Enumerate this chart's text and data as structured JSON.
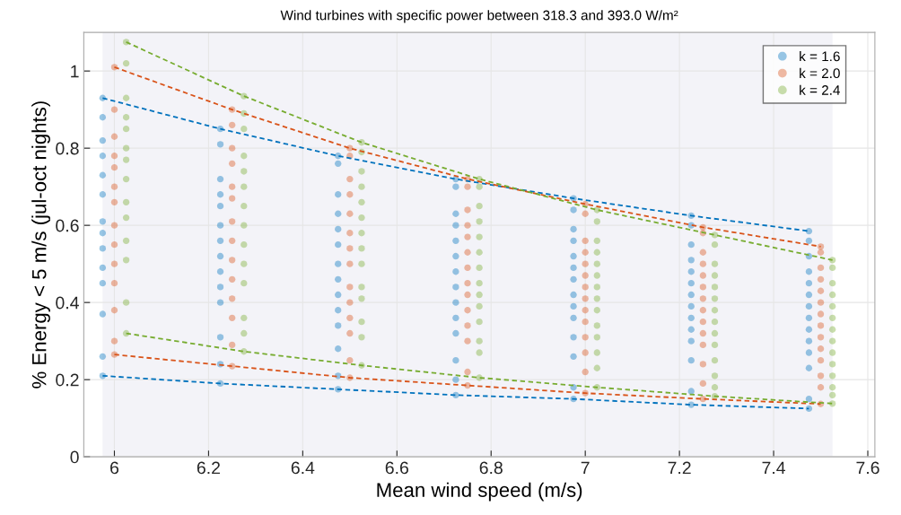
{
  "chart_data": {
    "type": "scatter",
    "title": "Wind turbines with specific power between 318.3 and 393.0 W/m²",
    "xlabel": "Mean wind speed (m/s)",
    "ylabel": "% Energy < 5 m/s (jul-oct nights)",
    "xlim": [
      5.935,
      7.615
    ],
    "ylim": [
      0,
      1.1
    ],
    "xticks": [
      6,
      6.2,
      6.4,
      6.6,
      6.8,
      7,
      7.2,
      7.4,
      7.6
    ],
    "yticks": [
      0,
      0.2,
      0.4,
      0.6,
      0.8,
      1
    ],
    "grid": true,
    "legend": "top right",
    "marker": "circle",
    "bands": [
      {
        "axis": "x",
        "from": 5.975,
        "to": 7.525,
        "color": "#f3f3f8"
      }
    ],
    "series": [
      {
        "name": "k = 1.6",
        "color": "#0072bd",
        "x": [
          5.975,
          5.975,
          5.975,
          5.975,
          5.975,
          5.975,
          5.975,
          5.975,
          5.975,
          5.975,
          5.975,
          5.975,
          5.975,
          5.975,
          6.225,
          6.225,
          6.225,
          6.225,
          6.225,
          6.225,
          6.225,
          6.225,
          6.225,
          6.225,
          6.225,
          6.225,
          6.225,
          6.225,
          6.475,
          6.475,
          6.475,
          6.475,
          6.475,
          6.475,
          6.475,
          6.475,
          6.475,
          6.475,
          6.475,
          6.475,
          6.475,
          6.475,
          6.725,
          6.725,
          6.725,
          6.725,
          6.725,
          6.725,
          6.725,
          6.725,
          6.725,
          6.725,
          6.725,
          6.725,
          6.725,
          6.725,
          6.975,
          6.975,
          6.975,
          6.975,
          6.975,
          6.975,
          6.975,
          6.975,
          6.975,
          6.975,
          6.975,
          6.975,
          6.975,
          6.975,
          7.225,
          7.225,
          7.225,
          7.225,
          7.225,
          7.225,
          7.225,
          7.225,
          7.225,
          7.225,
          7.225,
          7.225,
          7.225,
          7.225,
          7.475,
          7.475,
          7.475,
          7.475,
          7.475,
          7.475,
          7.475,
          7.475,
          7.475,
          7.475,
          7.475,
          7.475,
          7.475,
          7.475
        ],
        "values": [
          0.93,
          0.88,
          0.82,
          0.78,
          0.73,
          0.68,
          0.61,
          0.58,
          0.54,
          0.49,
          0.45,
          0.37,
          0.26,
          0.21,
          0.85,
          0.81,
          0.72,
          0.68,
          0.65,
          0.6,
          0.56,
          0.52,
          0.48,
          0.44,
          0.4,
          0.31,
          0.24,
          0.19,
          0.78,
          0.76,
          0.68,
          0.63,
          0.59,
          0.55,
          0.5,
          0.46,
          0.42,
          0.38,
          0.34,
          0.28,
          0.21,
          0.175,
          0.72,
          0.7,
          0.63,
          0.6,
          0.56,
          0.52,
          0.48,
          0.44,
          0.4,
          0.36,
          0.32,
          0.25,
          0.2,
          0.16,
          0.67,
          0.64,
          0.59,
          0.56,
          0.52,
          0.49,
          0.46,
          0.42,
          0.39,
          0.36,
          0.31,
          0.26,
          0.18,
          0.15,
          0.625,
          0.6,
          0.55,
          0.51,
          0.48,
          0.45,
          0.42,
          0.39,
          0.36,
          0.33,
          0.3,
          0.25,
          0.17,
          0.135,
          0.585,
          0.56,
          0.52,
          0.48,
          0.45,
          0.42,
          0.39,
          0.36,
          0.33,
          0.3,
          0.27,
          0.23,
          0.15,
          0.125
        ]
      },
      {
        "name": "k = 2.0",
        "color": "#d95319",
        "x": [
          6.0,
          6.0,
          6.0,
          6.0,
          6.0,
          6.0,
          6.0,
          6.0,
          6.0,
          6.0,
          6.0,
          6.0,
          6.0,
          6.0,
          6.25,
          6.25,
          6.25,
          6.25,
          6.25,
          6.25,
          6.25,
          6.25,
          6.25,
          6.25,
          6.25,
          6.25,
          6.25,
          6.25,
          6.5,
          6.5,
          6.5,
          6.5,
          6.5,
          6.5,
          6.5,
          6.5,
          6.5,
          6.5,
          6.5,
          6.5,
          6.5,
          6.5,
          6.75,
          6.75,
          6.75,
          6.75,
          6.75,
          6.75,
          6.75,
          6.75,
          6.75,
          6.75,
          6.75,
          6.75,
          6.75,
          6.75,
          7.0,
          7.0,
          7.0,
          7.0,
          7.0,
          7.0,
          7.0,
          7.0,
          7.0,
          7.0,
          7.0,
          7.0,
          7.0,
          7.0,
          7.25,
          7.25,
          7.25,
          7.25,
          7.25,
          7.25,
          7.25,
          7.25,
          7.25,
          7.25,
          7.25,
          7.25,
          7.25,
          7.25,
          7.5,
          7.5,
          7.5,
          7.5,
          7.5,
          7.5,
          7.5,
          7.5,
          7.5,
          7.5,
          7.5,
          7.5,
          7.5,
          7.5
        ],
        "values": [
          1.01,
          0.9,
          0.83,
          0.78,
          0.75,
          0.7,
          0.66,
          0.6,
          0.55,
          0.5,
          0.45,
          0.38,
          0.3,
          0.265,
          0.9,
          0.86,
          0.8,
          0.76,
          0.7,
          0.67,
          0.61,
          0.56,
          0.51,
          0.46,
          0.41,
          0.36,
          0.29,
          0.235,
          0.8,
          0.78,
          0.72,
          0.68,
          0.63,
          0.58,
          0.54,
          0.5,
          0.44,
          0.4,
          0.36,
          0.32,
          0.25,
          0.205,
          0.72,
          0.7,
          0.64,
          0.6,
          0.57,
          0.53,
          0.49,
          0.45,
          0.42,
          0.38,
          0.34,
          0.3,
          0.22,
          0.185,
          0.655,
          0.63,
          0.56,
          0.53,
          0.5,
          0.47,
          0.44,
          0.41,
          0.38,
          0.35,
          0.31,
          0.27,
          0.22,
          0.165,
          0.595,
          0.58,
          0.53,
          0.5,
          0.47,
          0.44,
          0.41,
          0.38,
          0.35,
          0.32,
          0.29,
          0.24,
          0.19,
          0.15,
          0.545,
          0.53,
          0.49,
          0.46,
          0.43,
          0.4,
          0.37,
          0.34,
          0.31,
          0.28,
          0.25,
          0.21,
          0.18,
          0.137
        ]
      },
      {
        "name": "k = 2.4",
        "color": "#77ac30",
        "x": [
          6.025,
          6.025,
          6.025,
          6.025,
          6.025,
          6.025,
          6.025,
          6.025,
          6.025,
          6.025,
          6.025,
          6.025,
          6.025,
          6.025,
          6.275,
          6.275,
          6.275,
          6.275,
          6.275,
          6.275,
          6.275,
          6.275,
          6.275,
          6.275,
          6.275,
          6.275,
          6.275,
          6.275,
          6.525,
          6.525,
          6.525,
          6.525,
          6.525,
          6.525,
          6.525,
          6.525,
          6.525,
          6.525,
          6.525,
          6.525,
          6.525,
          6.525,
          6.775,
          6.775,
          6.775,
          6.775,
          6.775,
          6.775,
          6.775,
          6.775,
          6.775,
          6.775,
          6.775,
          6.775,
          6.775,
          6.775,
          7.025,
          7.025,
          7.025,
          7.025,
          7.025,
          7.025,
          7.025,
          7.025,
          7.025,
          7.025,
          7.025,
          7.025,
          7.025,
          7.025,
          7.275,
          7.275,
          7.275,
          7.275,
          7.275,
          7.275,
          7.275,
          7.275,
          7.275,
          7.275,
          7.275,
          7.275,
          7.275,
          7.275,
          7.525,
          7.525,
          7.525,
          7.525,
          7.525,
          7.525,
          7.525,
          7.525,
          7.525,
          7.525,
          7.525,
          7.525,
          7.525,
          7.525
        ],
        "values": [
          1.075,
          1.02,
          0.93,
          0.88,
          0.85,
          0.8,
          0.77,
          0.72,
          0.66,
          0.62,
          0.56,
          0.51,
          0.4,
          0.32,
          0.935,
          0.89,
          0.85,
          0.78,
          0.74,
          0.7,
          0.65,
          0.6,
          0.55,
          0.5,
          0.45,
          0.36,
          0.32,
          0.273,
          0.815,
          0.79,
          0.74,
          0.7,
          0.66,
          0.62,
          0.58,
          0.54,
          0.5,
          0.44,
          0.41,
          0.35,
          0.31,
          0.237,
          0.72,
          0.7,
          0.65,
          0.61,
          0.57,
          0.53,
          0.49,
          0.45,
          0.42,
          0.39,
          0.35,
          0.3,
          0.27,
          0.205,
          0.64,
          0.61,
          0.56,
          0.53,
          0.5,
          0.47,
          0.44,
          0.41,
          0.38,
          0.34,
          0.31,
          0.27,
          0.23,
          0.18,
          0.575,
          0.55,
          0.5,
          0.47,
          0.44,
          0.41,
          0.38,
          0.35,
          0.32,
          0.29,
          0.25,
          0.21,
          0.18,
          0.157,
          0.51,
          0.49,
          0.45,
          0.42,
          0.39,
          0.36,
          0.33,
          0.3,
          0.27,
          0.24,
          0.21,
          0.18,
          0.16,
          0.138
        ]
      },
      {
        "type": "line",
        "line_style": "dashed",
        "color": "#0072bd",
        "x": [
          5.975,
          6.225,
          6.475,
          6.725,
          6.975,
          7.225,
          7.475
        ],
        "marker": "none",
        "values": [
          0.93,
          0.85,
          0.78,
          0.72,
          0.67,
          0.625,
          0.585
        ]
      },
      {
        "type": "line",
        "line_style": "dashed",
        "color": "#0072bd",
        "x": [
          5.975,
          6.225,
          6.475,
          6.725,
          6.975,
          7.225,
          7.475
        ],
        "marker": "none",
        "values": [
          0.21,
          0.19,
          0.175,
          0.16,
          0.15,
          0.135,
          0.125
        ]
      },
      {
        "type": "line",
        "line_style": "dashed",
        "color": "#d95319",
        "x": [
          6.0,
          6.25,
          6.5,
          6.75,
          7.0,
          7.25,
          7.5
        ],
        "marker": "none",
        "values": [
          1.01,
          0.9,
          0.8,
          0.72,
          0.655,
          0.595,
          0.545
        ]
      },
      {
        "type": "line",
        "line_style": "dashed",
        "color": "#d95319",
        "x": [
          6.0,
          6.25,
          6.5,
          6.75,
          7.0,
          7.25,
          7.5
        ],
        "marker": "none",
        "values": [
          0.265,
          0.235,
          0.205,
          0.185,
          0.165,
          0.15,
          0.137
        ]
      },
      {
        "type": "line",
        "line_style": "dashed",
        "color": "#77ac30",
        "x": [
          6.025,
          6.275,
          6.525,
          6.775,
          7.025,
          7.275,
          7.525
        ],
        "marker": "none",
        "values": [
          1.075,
          0.935,
          0.815,
          0.72,
          0.64,
          0.575,
          0.51
        ]
      },
      {
        "type": "line",
        "line_style": "dashed",
        "color": "#77ac30",
        "x": [
          6.025,
          6.275,
          6.525,
          6.775,
          7.025,
          7.275,
          7.525
        ],
        "marker": "none",
        "values": [
          0.32,
          0.273,
          0.237,
          0.205,
          0.18,
          0.157,
          0.138
        ]
      }
    ]
  }
}
